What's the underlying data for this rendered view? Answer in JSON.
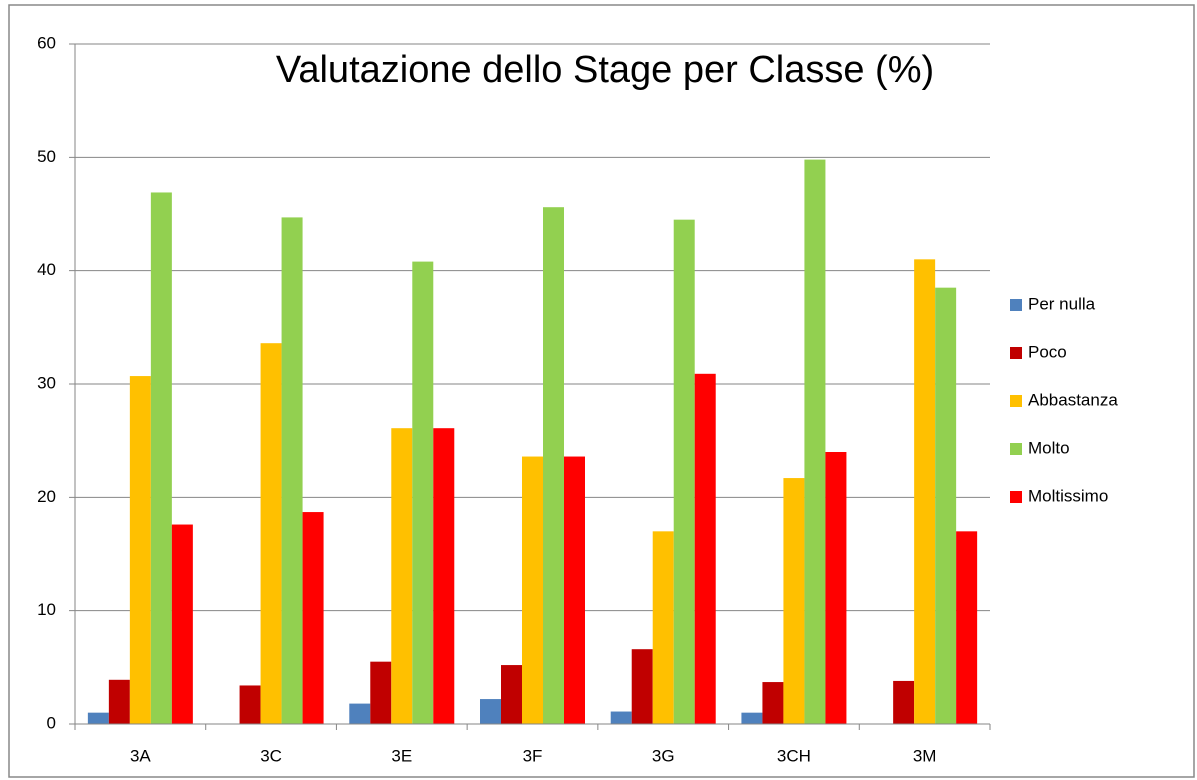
{
  "chart_data": {
    "type": "bar",
    "title": "Valutazione dello Stage per Classe (%)",
    "categories": [
      "3A",
      "3C",
      "3E",
      "3F",
      "3G",
      "3CH",
      "3M"
    ],
    "series": [
      {
        "name": "Per nulla",
        "color": "#4f81bd",
        "values": [
          1.0,
          0,
          1.8,
          2.2,
          1.1,
          1.0,
          0
        ]
      },
      {
        "name": "Poco",
        "color": "#c00000",
        "values": [
          3.9,
          3.4,
          5.5,
          5.2,
          6.6,
          3.7,
          3.8
        ]
      },
      {
        "name": "Abbastanza",
        "color": "#ffc000",
        "values": [
          30.7,
          33.6,
          26.1,
          23.6,
          17.0,
          21.7,
          41.0
        ]
      },
      {
        "name": "Molto",
        "color": "#92d050",
        "values": [
          46.9,
          44.7,
          40.8,
          45.6,
          44.5,
          49.8,
          38.5
        ]
      },
      {
        "name": "Moltissimo",
        "color": "#ff0000",
        "values": [
          17.6,
          18.7,
          26.1,
          23.6,
          30.9,
          24.0,
          17.0
        ]
      }
    ],
    "ylim": [
      0,
      60
    ],
    "yticks": [
      0,
      10,
      20,
      30,
      40,
      50,
      60
    ],
    "grid": true,
    "legend": "right"
  }
}
